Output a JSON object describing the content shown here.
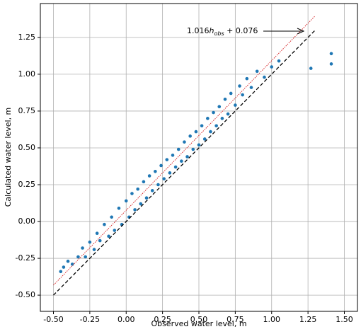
{
  "chart_data": {
    "type": "scatter",
    "xlabel": "Observed water level, m",
    "ylabel": "Calculated water level, m",
    "annotation": {
      "coef": "1.016",
      "var": "h",
      "sub": "obs",
      "rest": " + 0.076"
    },
    "xlim": [
      -0.59,
      1.59
    ],
    "ylim": [
      -0.61,
      1.48
    ],
    "grid": true,
    "xticks": [
      {
        "value": -0.5,
        "label": "-0.50"
      },
      -0.25,
      {
        "value": 0,
        "label": "0.00"
      },
      0.25,
      {
        "value": 0.5,
        "label": "0.50"
      },
      0.75,
      {
        "value": 1,
        "label": "1.00"
      },
      1.25,
      {
        "value": 1.5,
        "label": "1.50"
      }
    ],
    "yticks": [
      {
        "value": -0.5,
        "label": "-0.50"
      },
      -0.25,
      {
        "value": 0,
        "label": "0.00"
      },
      0.25,
      {
        "value": 0.5,
        "label": "0.50"
      },
      0.75,
      {
        "value": 1,
        "label": "1.00"
      },
      1.25
    ],
    "color": "#1f77b4",
    "x": [
      -0.45,
      -0.43,
      -0.4,
      -0.37,
      -0.33,
      -0.3,
      -0.28,
      -0.25,
      -0.22,
      -0.2,
      -0.18,
      -0.15,
      -0.12,
      -0.1,
      -0.08,
      -0.05,
      -0.03,
      0.0,
      0.02,
      0.04,
      0.06,
      0.08,
      0.1,
      0.12,
      0.14,
      0.16,
      0.18,
      0.2,
      0.22,
      0.24,
      0.26,
      0.28,
      0.3,
      0.32,
      0.34,
      0.36,
      0.38,
      0.4,
      0.42,
      0.44,
      0.46,
      0.48,
      0.5,
      0.52,
      0.54,
      0.56,
      0.58,
      0.6,
      0.62,
      0.64,
      0.66,
      0.68,
      0.7,
      0.72,
      0.75,
      0.78,
      0.8,
      0.83,
      0.86,
      0.9,
      0.95,
      1.0,
      1.05,
      1.27,
      1.41,
      1.41
    ],
    "values": [
      -0.34,
      -0.31,
      -0.27,
      -0.29,
      -0.24,
      -0.18,
      -0.24,
      -0.14,
      -0.19,
      -0.08,
      -0.13,
      -0.02,
      -0.1,
      0.03,
      -0.06,
      0.09,
      -0.02,
      0.14,
      0.03,
      0.19,
      0.08,
      0.22,
      0.12,
      0.27,
      0.16,
      0.31,
      0.21,
      0.34,
      0.25,
      0.38,
      0.29,
      0.42,
      0.33,
      0.45,
      0.37,
      0.49,
      0.41,
      0.54,
      0.44,
      0.58,
      0.49,
      0.61,
      0.52,
      0.65,
      0.56,
      0.7,
      0.61,
      0.74,
      0.65,
      0.78,
      0.7,
      0.83,
      0.73,
      0.87,
      0.79,
      0.92,
      0.86,
      0.97,
      0.91,
      1.02,
      0.98,
      1.05,
      1.09,
      1.04,
      1.14,
      1.07
    ],
    "lines": [
      {
        "x": [
          -0.5,
          1.3
        ],
        "values": [
          -0.432,
          1.397
        ],
        "color": "#d62728",
        "style": "dotted"
      },
      {
        "x": [
          -0.5,
          1.3
        ],
        "values": [
          -0.5,
          1.3
        ],
        "color": "#000000",
        "style": "dashed"
      }
    ]
  }
}
